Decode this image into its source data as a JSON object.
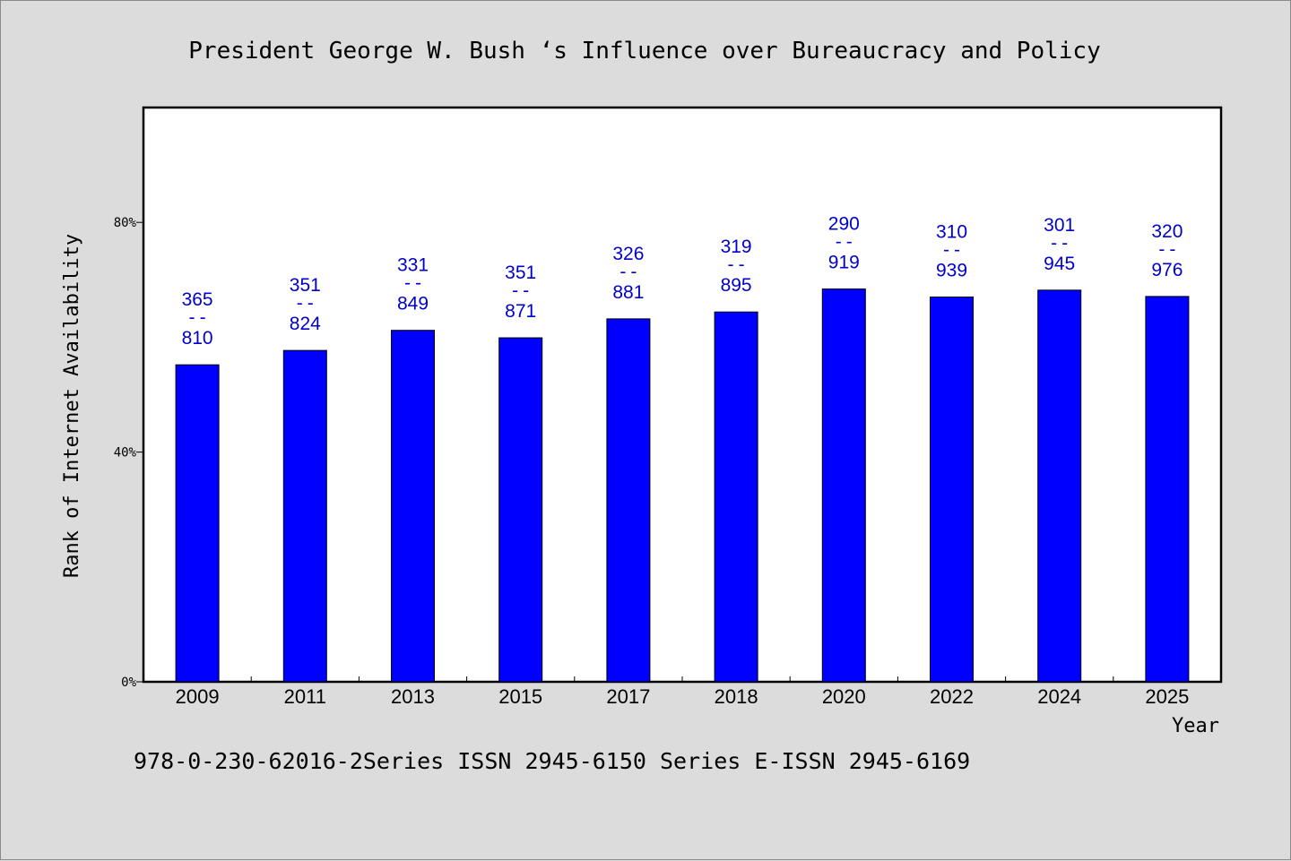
{
  "chart_data": {
    "type": "bar",
    "title": "President George W. Bush ‘s Influence over Bureaucracy and Policy",
    "xlabel": "Year",
    "ylabel": "Rank of Internet Availability",
    "categories": [
      "2009",
      "2011",
      "2013",
      "2015",
      "2017",
      "2018",
      "2020",
      "2022",
      "2024",
      "2025"
    ],
    "values": [
      55.2,
      57.7,
      61.2,
      59.9,
      63.2,
      64.4,
      68.4,
      67.0,
      68.2,
      67.1
    ],
    "data_labels": [
      {
        "top": "365",
        "sep": "--",
        "bottom": "810"
      },
      {
        "top": "351",
        "sep": "--",
        "bottom": "824"
      },
      {
        "top": "331",
        "sep": "--",
        "bottom": "849"
      },
      {
        "top": "351",
        "sep": "--",
        "bottom": "871"
      },
      {
        "top": "326",
        "sep": "--",
        "bottom": "881"
      },
      {
        "top": "319",
        "sep": "--",
        "bottom": "895"
      },
      {
        "top": "290",
        "sep": "--",
        "bottom": "919"
      },
      {
        "top": "310",
        "sep": "--",
        "bottom": "939"
      },
      {
        "top": "301",
        "sep": "--",
        "bottom": "945"
      },
      {
        "top": "320",
        "sep": "--",
        "bottom": "976"
      }
    ],
    "ylim": [
      0,
      100
    ],
    "yticks": [
      {
        "value": 0,
        "label": "0%"
      },
      {
        "value": 40,
        "label": "40%"
      },
      {
        "value": 80,
        "label": "80%"
      }
    ],
    "grid": false,
    "legend": "none",
    "bar_color": "#0000ff",
    "label_color": "#0000cc",
    "plot_background": "#ffffff",
    "page_background": "#dcdcdc"
  },
  "caption": "978-0-230-62016-2Series ISSN 2945-6150 Series E-ISSN 2945-6169"
}
